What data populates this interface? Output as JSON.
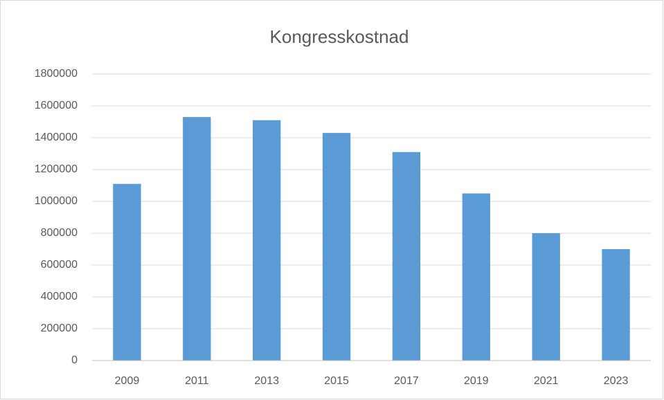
{
  "chart_data": {
    "type": "bar",
    "title": "Kongresskostnad",
    "categories": [
      "2009",
      "2011",
      "2013",
      "2015",
      "2017",
      "2019",
      "2021",
      "2023"
    ],
    "values": [
      1110000,
      1530000,
      1510000,
      1430000,
      1310000,
      1050000,
      800000,
      700000
    ],
    "color": "#5b9bd5",
    "ylim": [
      0,
      1800000
    ],
    "yticks": [
      0,
      200000,
      400000,
      600000,
      800000,
      1000000,
      1200000,
      1400000,
      1600000,
      1800000
    ],
    "grid": true
  }
}
